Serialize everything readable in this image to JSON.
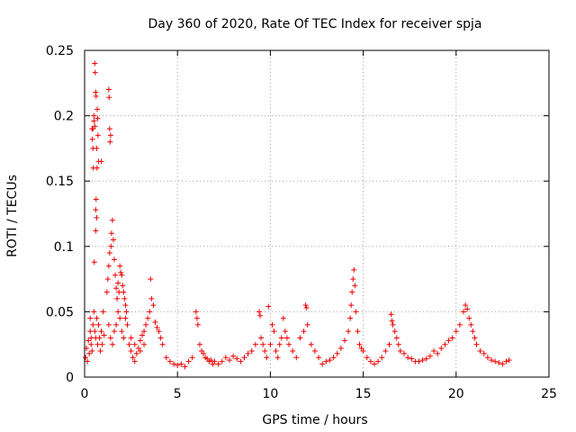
{
  "chart_data": {
    "type": "scatter",
    "title": "Day 360 of 2020, Rate Of TEC Index for receiver spja",
    "xlabel": "GPS time / hours",
    "ylabel": "ROTI / TECUs",
    "xlim": [
      0,
      25
    ],
    "ylim": [
      0,
      0.25
    ],
    "xticks": [
      0,
      5,
      10,
      15,
      20,
      25
    ],
    "xtick_labels": [
      "0",
      "5",
      "10",
      "15",
      "20",
      "25"
    ],
    "yticks": [
      0,
      0.05,
      0.1,
      0.15,
      0.2,
      0.25
    ],
    "ytick_labels": [
      "0",
      "0.05",
      "0.1",
      "0.15",
      "0.2",
      "0.25"
    ],
    "grid": true,
    "marker": "plus",
    "color": "#ee0000",
    "series": [
      {
        "name": "ROTI",
        "points": [
          [
            0.05,
            0.015
          ],
          [
            0.1,
            0.022
          ],
          [
            0.15,
            0.012
          ],
          [
            0.2,
            0.028
          ],
          [
            0.25,
            0.018
          ],
          [
            0.3,
            0.035
          ],
          [
            0.35,
            0.025
          ],
          [
            0.4,
            0.19
          ],
          [
            0.42,
            0.182
          ],
          [
            0.45,
            0.175
          ],
          [
            0.47,
            0.16
          ],
          [
            0.5,
            0.2
          ],
          [
            0.52,
            0.088
          ],
          [
            0.55,
            0.24
          ],
          [
            0.57,
            0.233
          ],
          [
            0.6,
            0.218
          ],
          [
            0.62,
            0.215
          ],
          [
            0.65,
            0.175
          ],
          [
            0.67,
            0.16
          ],
          [
            0.7,
            0.198
          ],
          [
            0.72,
            0.185
          ],
          [
            0.75,
            0.165
          ],
          [
            0.6,
            0.128
          ],
          [
            0.62,
            0.136
          ],
          [
            0.65,
            0.122
          ],
          [
            0.6,
            0.112
          ],
          [
            0.68,
            0.205
          ],
          [
            0.55,
            0.192
          ],
          [
            0.5,
            0.196
          ],
          [
            0.45,
            0.19
          ],
          [
            0.3,
            0.045
          ],
          [
            0.35,
            0.03
          ],
          [
            0.4,
            0.02
          ],
          [
            0.45,
            0.04
          ],
          [
            0.5,
            0.05
          ],
          [
            0.55,
            0.035
          ],
          [
            0.6,
            0.03
          ],
          [
            0.65,
            0.045
          ],
          [
            0.7,
            0.025
          ],
          [
            0.75,
            0.04
          ],
          [
            0.8,
            0.03
          ],
          [
            0.85,
            0.02
          ],
          [
            0.9,
            0.035
          ],
          [
            0.95,
            0.025
          ],
          [
            1.0,
            0.05
          ],
          [
            1.05,
            0.032
          ],
          [
            0.9,
            0.165
          ],
          [
            1.2,
            0.065
          ],
          [
            1.25,
            0.075
          ],
          [
            1.3,
            0.085
          ],
          [
            1.35,
            0.095
          ],
          [
            1.3,
            0.22
          ],
          [
            1.32,
            0.214
          ],
          [
            1.35,
            0.19
          ],
          [
            1.37,
            0.18
          ],
          [
            1.4,
            0.185
          ],
          [
            1.42,
            0.1
          ],
          [
            1.45,
            0.11
          ],
          [
            1.5,
            0.12
          ],
          [
            1.55,
            0.105
          ],
          [
            1.6,
            0.09
          ],
          [
            1.65,
            0.078
          ],
          [
            1.7,
            0.068
          ],
          [
            1.75,
            0.06
          ],
          [
            1.8,
            0.072
          ],
          [
            1.85,
            0.065
          ],
          [
            1.9,
            0.085
          ],
          [
            1.95,
            0.08
          ],
          [
            2.0,
            0.078
          ],
          [
            2.05,
            0.07
          ],
          [
            2.1,
            0.065
          ],
          [
            2.15,
            0.06
          ],
          [
            2.2,
            0.055
          ],
          [
            2.25,
            0.05
          ],
          [
            1.3,
            0.04
          ],
          [
            1.4,
            0.03
          ],
          [
            1.5,
            0.025
          ],
          [
            1.6,
            0.035
          ],
          [
            1.7,
            0.04
          ],
          [
            1.8,
            0.05
          ],
          [
            1.9,
            0.045
          ],
          [
            2.0,
            0.035
          ],
          [
            2.1,
            0.03
          ],
          [
            2.2,
            0.045
          ],
          [
            2.3,
            0.04
          ],
          [
            2.4,
            0.025
          ],
          [
            2.5,
            0.02
          ],
          [
            2.6,
            0.015
          ],
          [
            2.7,
            0.012
          ],
          [
            2.8,
            0.018
          ],
          [
            2.9,
            0.022
          ],
          [
            3.0,
            0.028
          ],
          [
            3.1,
            0.032
          ],
          [
            3.2,
            0.035
          ],
          [
            3.3,
            0.04
          ],
          [
            3.4,
            0.045
          ],
          [
            3.5,
            0.05
          ],
          [
            3.55,
            0.075
          ],
          [
            3.6,
            0.06
          ],
          [
            3.7,
            0.055
          ],
          [
            3.8,
            0.042
          ],
          [
            3.9,
            0.038
          ],
          [
            4.0,
            0.035
          ],
          [
            4.1,
            0.03
          ],
          [
            4.2,
            0.025
          ],
          [
            2.5,
            0.03
          ],
          [
            2.7,
            0.025
          ],
          [
            3.0,
            0.02
          ],
          [
            3.2,
            0.025
          ],
          [
            4.4,
            0.015
          ],
          [
            4.6,
            0.012
          ],
          [
            4.8,
            0.01
          ],
          [
            5.0,
            0.009
          ],
          [
            5.2,
            0.01
          ],
          [
            5.4,
            0.008
          ],
          [
            5.6,
            0.012
          ],
          [
            5.8,
            0.015
          ],
          [
            6.0,
            0.05
          ],
          [
            6.05,
            0.045
          ],
          [
            6.1,
            0.04
          ],
          [
            6.2,
            0.025
          ],
          [
            6.3,
            0.02
          ],
          [
            6.4,
            0.018
          ],
          [
            6.5,
            0.015
          ],
          [
            6.6,
            0.014
          ],
          [
            6.7,
            0.012
          ],
          [
            6.8,
            0.013
          ],
          [
            6.9,
            0.01
          ],
          [
            7.0,
            0.012
          ],
          [
            7.2,
            0.01
          ],
          [
            7.4,
            0.012
          ],
          [
            7.6,
            0.015
          ],
          [
            7.8,
            0.013
          ],
          [
            8.0,
            0.016
          ],
          [
            8.2,
            0.014
          ],
          [
            8.4,
            0.012
          ],
          [
            8.6,
            0.015
          ],
          [
            8.8,
            0.018
          ],
          [
            9.0,
            0.02
          ],
          [
            9.2,
            0.025
          ],
          [
            9.4,
            0.05
          ],
          [
            9.45,
            0.047
          ],
          [
            9.5,
            0.03
          ],
          [
            9.6,
            0.025
          ],
          [
            9.7,
            0.02
          ],
          [
            9.8,
            0.015
          ],
          [
            9.9,
            0.054
          ],
          [
            10.0,
            0.025
          ],
          [
            10.1,
            0.04
          ],
          [
            10.2,
            0.035
          ],
          [
            10.3,
            0.02
          ],
          [
            10.4,
            0.015
          ],
          [
            10.5,
            0.025
          ],
          [
            10.6,
            0.03
          ],
          [
            10.7,
            0.045
          ],
          [
            10.8,
            0.035
          ],
          [
            10.9,
            0.03
          ],
          [
            11.0,
            0.025
          ],
          [
            11.2,
            0.02
          ],
          [
            11.4,
            0.015
          ],
          [
            11.6,
            0.03
          ],
          [
            11.8,
            0.035
          ],
          [
            11.9,
            0.055
          ],
          [
            11.95,
            0.053
          ],
          [
            12.0,
            0.04
          ],
          [
            12.2,
            0.025
          ],
          [
            12.4,
            0.02
          ],
          [
            12.6,
            0.015
          ],
          [
            12.8,
            0.01
          ],
          [
            13.0,
            0.012
          ],
          [
            13.2,
            0.013
          ],
          [
            13.4,
            0.015
          ],
          [
            13.6,
            0.018
          ],
          [
            13.8,
            0.022
          ],
          [
            14.0,
            0.028
          ],
          [
            14.2,
            0.035
          ],
          [
            14.3,
            0.045
          ],
          [
            14.35,
            0.055
          ],
          [
            14.4,
            0.065
          ],
          [
            14.45,
            0.075
          ],
          [
            14.5,
            0.082
          ],
          [
            14.55,
            0.07
          ],
          [
            14.6,
            0.05
          ],
          [
            14.7,
            0.035
          ],
          [
            14.8,
            0.025
          ],
          [
            14.9,
            0.022
          ],
          [
            15.0,
            0.02
          ],
          [
            15.2,
            0.015
          ],
          [
            15.4,
            0.012
          ],
          [
            15.6,
            0.01
          ],
          [
            15.8,
            0.012
          ],
          [
            16.0,
            0.015
          ],
          [
            16.2,
            0.02
          ],
          [
            16.4,
            0.025
          ],
          [
            16.5,
            0.048
          ],
          [
            16.55,
            0.043
          ],
          [
            16.6,
            0.04
          ],
          [
            16.7,
            0.035
          ],
          [
            16.8,
            0.03
          ],
          [
            16.9,
            0.025
          ],
          [
            17.0,
            0.02
          ],
          [
            17.2,
            0.018
          ],
          [
            17.4,
            0.015
          ],
          [
            17.6,
            0.014
          ],
          [
            17.8,
            0.012
          ],
          [
            18.0,
            0.012
          ],
          [
            18.2,
            0.013
          ],
          [
            18.4,
            0.014
          ],
          [
            18.6,
            0.016
          ],
          [
            18.8,
            0.02
          ],
          [
            19.0,
            0.018
          ],
          [
            19.2,
            0.022
          ],
          [
            19.4,
            0.025
          ],
          [
            19.6,
            0.028
          ],
          [
            19.8,
            0.03
          ],
          [
            20.0,
            0.035
          ],
          [
            20.2,
            0.04
          ],
          [
            20.4,
            0.05
          ],
          [
            20.5,
            0.055
          ],
          [
            20.6,
            0.052
          ],
          [
            20.7,
            0.045
          ],
          [
            20.8,
            0.04
          ],
          [
            20.9,
            0.035
          ],
          [
            21.0,
            0.03
          ],
          [
            21.1,
            0.025
          ],
          [
            21.3,
            0.02
          ],
          [
            21.5,
            0.018
          ],
          [
            21.7,
            0.015
          ],
          [
            21.9,
            0.013
          ],
          [
            22.1,
            0.012
          ],
          [
            22.3,
            0.011
          ],
          [
            22.5,
            0.01
          ],
          [
            22.7,
            0.012
          ],
          [
            22.85,
            0.013
          ]
        ]
      }
    ]
  }
}
